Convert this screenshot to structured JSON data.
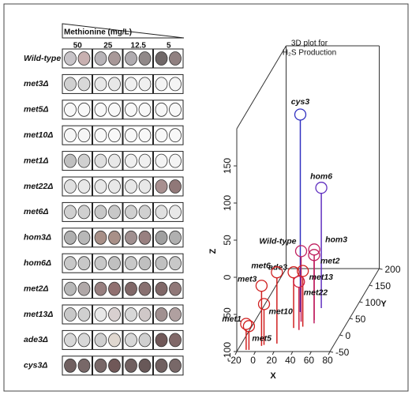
{
  "plate": {
    "header": "Methionine (mg/L)",
    "columns": [
      "50",
      "25",
      "12.5",
      "5"
    ],
    "rows": [
      {
        "label": "Wild-type",
        "wells": [
          "#c8c4c8",
          "#c8b0b0",
          "#b8b4b8",
          "#a89898",
          "#b0acb0",
          "#908888",
          "#706868",
          "#908080"
        ]
      },
      {
        "label": "met3Δ",
        "wells": [
          "#d0d0d0",
          "#d8d8d8",
          "#e8e8e8",
          "#e8e8e8",
          "#f0f0f0",
          "#f0f0f0",
          "#f4f4f4",
          "#f4f4f4"
        ]
      },
      {
        "label": "met5Δ",
        "wells": [
          "#f8f8f8",
          "#f8f8f8",
          "#f8f8f8",
          "#f8f8f8",
          "#f8f8f8",
          "#f8f8f8",
          "#f8f8f8",
          "#f8f8f8"
        ]
      },
      {
        "label": "met10Δ",
        "wells": [
          "#f6f6f6",
          "#f6f6f6",
          "#f8f8f8",
          "#f8f8f8",
          "#f8f8f8",
          "#f8f8f8",
          "#f8f8f8",
          "#f8f8f8"
        ]
      },
      {
        "label": "met1Δ",
        "wells": [
          "#c0c0c0",
          "#d0d0d0",
          "#e0e0e0",
          "#e8e8e8",
          "#f0f0f0",
          "#f0f0f0",
          "#f4f4f4",
          "#f4f4f4"
        ]
      },
      {
        "label": "met22Δ",
        "wells": [
          "#e0e0e0",
          "#e8e8e8",
          "#e8e8e8",
          "#e8e8e8",
          "#e8e8e8",
          "#e8e8e8",
          "#a89090",
          "#907878"
        ]
      },
      {
        "label": "met6Δ",
        "wells": [
          "#d0d0d0",
          "#d0d0d0",
          "#c8c8c8",
          "#c8c8c8",
          "#d0d0d0",
          "#d0d0d0",
          "#e0e0e0",
          "#e8e8e8"
        ]
      },
      {
        "label": "hom3Δ",
        "wells": [
          "#b0b0b0",
          "#b8b8b8",
          "#a89088",
          "#a89088",
          "#a09090",
          "#988080",
          "#a0a0a0",
          "#b0b0b0"
        ]
      },
      {
        "label": "hom6Δ",
        "wells": [
          "#c8c8c8",
          "#c8c8c8",
          "#c8c8c8",
          "#c0c0c0",
          "#c8c8c8",
          "#c0c0c0",
          "#c0c0c0",
          "#c8c8c8"
        ]
      },
      {
        "label": "met2Δ",
        "wells": [
          "#b8b8b8",
          "#b0a8a8",
          "#988080",
          "#907070",
          "#806868",
          "#887070",
          "#806868",
          "#907878"
        ]
      },
      {
        "label": "met13Δ",
        "wells": [
          "#c8c8c8",
          "#d0d0d0",
          "#e8e8e8",
          "#d8d0d0",
          "#d8d8d8",
          "#d0c8c8",
          "#a09090",
          "#b0a0a0"
        ]
      },
      {
        "label": "ade3Δ",
        "wells": [
          "#d8d8d8",
          "#d8d8d8",
          "#d0d0d0",
          "#e0d8d0",
          "#d8d8d8",
          "#d0d0d0",
          "#705858",
          "#806868"
        ]
      },
      {
        "label": "cys3Δ",
        "wells": [
          "#706060",
          "#786868",
          "#786868",
          "#705858",
          "#706060",
          "#685858",
          "#706060",
          "#786868"
        ]
      }
    ]
  },
  "chart_data": {
    "type": "scatter3d",
    "title": [
      "3D plot for",
      "H₂S Production"
    ],
    "xlabel": "X",
    "ylabel": "Y",
    "zlabel": "Z",
    "xlim": [
      -20,
      80
    ],
    "ylim": [
      -50,
      200
    ],
    "zlim": [
      -100,
      200
    ],
    "xticks": [
      -20,
      0,
      20,
      40,
      60,
      80
    ],
    "yticks": [
      -50,
      0,
      50,
      100,
      150,
      200
    ],
    "zticks": [
      -100,
      -50,
      0,
      50,
      100,
      150
    ],
    "points": [
      {
        "name": "cys3",
        "x": 23,
        "y": 69,
        "z": 166,
        "color": "#3030c0"
      },
      {
        "name": "hom6",
        "x": 43,
        "y": 81,
        "z": 62,
        "color": "#6030c0"
      },
      {
        "name": "hom3",
        "x": 43,
        "y": 45,
        "z": -5,
        "color": "#c02060"
      },
      {
        "name": "met2",
        "x": 45,
        "y": 35,
        "z": -8,
        "color": "#c02060"
      },
      {
        "name": "Wild-type",
        "x": 30,
        "y": 40,
        "z": -5,
        "color": "#c02060"
      },
      {
        "name": "ade3",
        "x": 26,
        "y": 21,
        "z": -25,
        "color": "#d02020"
      },
      {
        "name": "met13",
        "x": 35,
        "y": 25,
        "z": -25,
        "color": "#d02020"
      },
      {
        "name": "met22",
        "x": 33,
        "y": 15,
        "z": -35,
        "color": "#d02040"
      },
      {
        "name": "met6",
        "x": 18,
        "y": -26,
        "z": -4,
        "color": "#d02020"
      },
      {
        "name": "met3",
        "x": 3,
        "y": -33,
        "z": -19,
        "color": "#d02020"
      },
      {
        "name": "met10",
        "x": 5,
        "y": -30,
        "z": -45,
        "color": "#d02020"
      },
      {
        "name": "met1",
        "x": -11,
        "y": -45,
        "z": -65,
        "color": "#d02020"
      },
      {
        "name": "met5",
        "x": -8,
        "y": -45,
        "z": -68,
        "color": "#d02020"
      }
    ]
  }
}
